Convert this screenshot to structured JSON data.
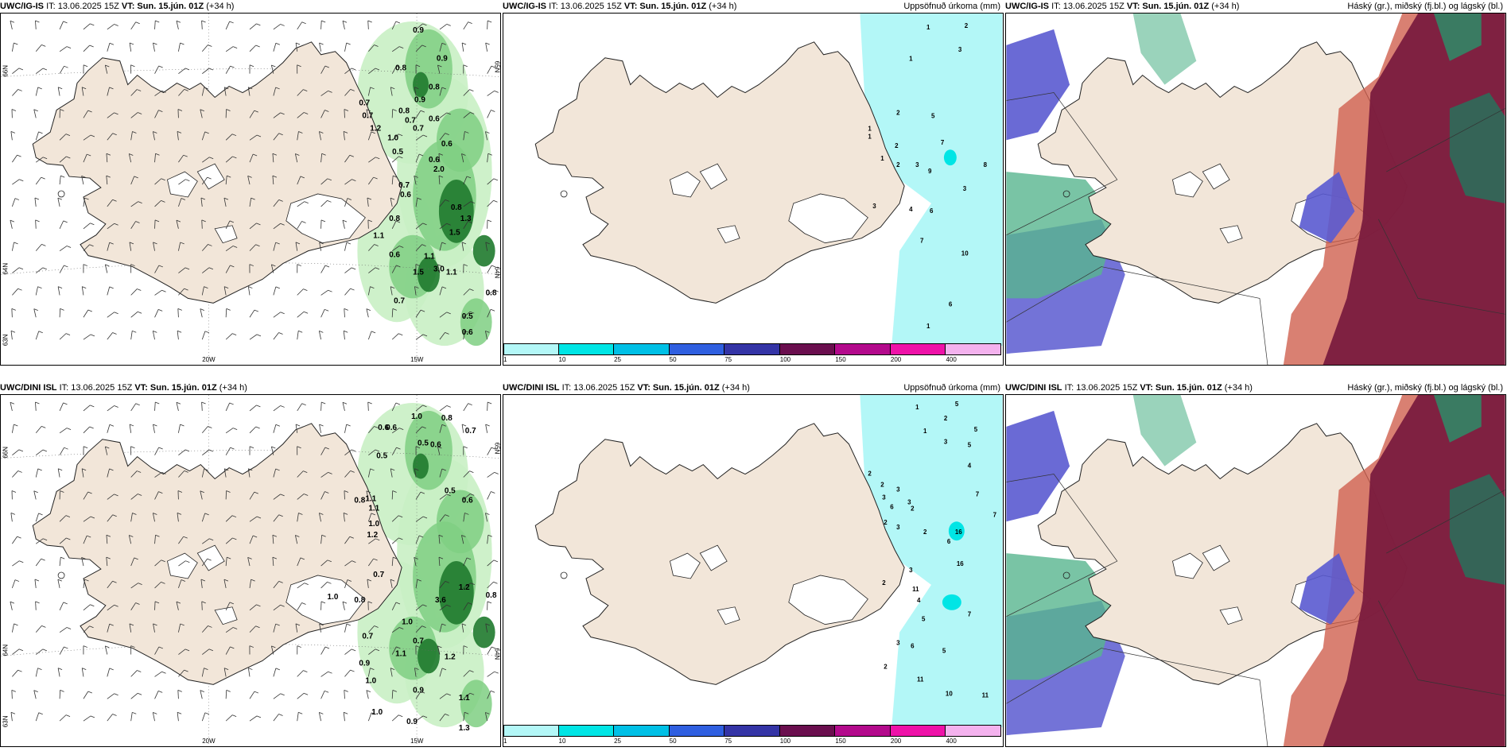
{
  "panels": [
    {
      "id": "r1c1",
      "model": "UWC/IG-IS",
      "it": "IT: 13.06.2025 15Z",
      "vt_label": "VT:",
      "vt": "Sun. 15.jún. 01Z",
      "lead": "(+34 h)",
      "title_right": "",
      "lon_labels": [
        "20W",
        "15W"
      ],
      "lat_labels": [
        "66N",
        "64N",
        "63N"
      ],
      "right_lat_labels": [
        "65N",
        "64N"
      ],
      "values": [
        "0.9",
        "0.9",
        "0.8",
        "0.8",
        "0.9",
        "0.7",
        "0.7",
        "0.8",
        "0.7",
        "1.2",
        "0.6",
        "0.7",
        "1.0",
        "0.5",
        "0.6",
        "0.6",
        "2.0",
        "0.7",
        "0.6",
        "0.8",
        "1.3",
        "0.8",
        "1.1",
        "1.5",
        "0.6",
        "1.1",
        "1.5",
        "1.1",
        "3.0",
        "0.7",
        "0.5",
        "0.6",
        "0.8"
      ]
    },
    {
      "id": "r1c2",
      "model": "UWC/IG-IS",
      "it": "IT: 13.06.2025 15Z",
      "vt_label": "VT:",
      "vt": "Sun. 15.jún. 01Z",
      "lead": "(+34 h)",
      "title_right": "Uppsöfnuð úrkoma (mm)",
      "values": [
        "1",
        "2",
        "3",
        "1",
        "2",
        "5",
        "1",
        "1",
        "2",
        "7",
        "1",
        "2",
        "3",
        "9",
        "8",
        "3",
        "3",
        "4",
        "6",
        "7",
        "10",
        "6",
        "1"
      ],
      "colorbar": {
        "labels": [
          "1",
          "10",
          "25",
          "50",
          "75",
          "100",
          "150",
          "200",
          "400"
        ],
        "colors": [
          "#b3f7f7",
          "#00e5e5",
          "#00c0e6",
          "#2f5fe0",
          "#3434a6",
          "#6a0e4e",
          "#b30a8c",
          "#ee12a8",
          "#f4b2ee"
        ]
      }
    },
    {
      "id": "r1c3",
      "model": "UWC/IG-IS",
      "it": "IT: 13.06.2025 15Z",
      "vt_label": "VT:",
      "vt": "Sun. 15.jún. 01Z",
      "lead": "(+34 h)",
      "title_right": "Háský (gr.), miðský (fj.bl.) og lágský (bl.)"
    },
    {
      "id": "r2c1",
      "model": "UWC/DINI ISL",
      "it": "IT: 13.06.2025 15Z",
      "vt_label": "VT:",
      "vt": "Sun. 15.jún. 01Z",
      "lead": "(+34 h)",
      "title_right": "",
      "lon_labels": [
        "20W",
        "15W"
      ],
      "lat_labels": [
        "66N",
        "64N",
        "63N"
      ],
      "right_lat_labels": [
        "65N",
        "64N"
      ],
      "values": [
        "1.0",
        "0.8",
        "0.7",
        "0.6",
        "0.6",
        "0.5",
        "0.6",
        "0.5",
        "0.5",
        "0.6",
        "1.1",
        "0.8",
        "1.1",
        "1.0",
        "1.2",
        "0.7",
        "1.0",
        "0.8",
        "1.0",
        "3.6",
        "1.2",
        "0.8",
        "1.2",
        "1.1",
        "0.7",
        "0.7",
        "0.9",
        "1.0",
        "0.9",
        "1.1",
        "1.0",
        "0.9",
        "1.3"
      ]
    },
    {
      "id": "r2c2",
      "model": "UWC/DINI ISL",
      "it": "IT: 13.06.2025 15Z",
      "vt_label": "VT:",
      "vt": "Sun. 15.jún. 01Z",
      "lead": "(+34 h)",
      "title_right": "Uppsöfnuð úrkoma (mm)",
      "values": [
        "1",
        "5",
        "2",
        "1",
        "5",
        "3",
        "5",
        "4",
        "2",
        "2",
        "3",
        "7",
        "3",
        "6",
        "3",
        "7",
        "2",
        "16",
        "2",
        "3",
        "2",
        "6",
        "3",
        "16",
        "2",
        "11",
        "4",
        "7",
        "5",
        "3",
        "6",
        "5",
        "2",
        "11",
        "10",
        "11",
        "6",
        "6",
        "6"
      ],
      "colorbar": {
        "labels": [
          "1",
          "10",
          "25",
          "50",
          "75",
          "100",
          "150",
          "200",
          "400"
        ],
        "colors": [
          "#b3f7f7",
          "#00e5e5",
          "#00c0e6",
          "#2f5fe0",
          "#3434a6",
          "#6a0e4e",
          "#b30a8c",
          "#ee12a8",
          "#f4b2ee"
        ]
      }
    },
    {
      "id": "r2c3",
      "model": "UWC/DINI ISL",
      "it": "IT: 13.06.2025 15Z",
      "vt_label": "VT:",
      "vt": "Sun. 15.jún. 01Z",
      "lead": "(+34 h)",
      "title_right": "Háský (gr.), miðský (fj.bl.) og lágský (bl.)"
    }
  ],
  "colors": {
    "land": "#f2e6d9",
    "precip_light": "#b3f7f7",
    "green_light": "#c9efc4",
    "green_mid": "#7fcf82",
    "green_dark": "#1f7a2e",
    "green_deep": "#0b4a16",
    "cloud_high_maroon": "#7a1b3e",
    "cloud_mid_red": "#d0604f",
    "cloud_low_blue": "#5a5ad0",
    "cloud_green": "#57b58e"
  }
}
